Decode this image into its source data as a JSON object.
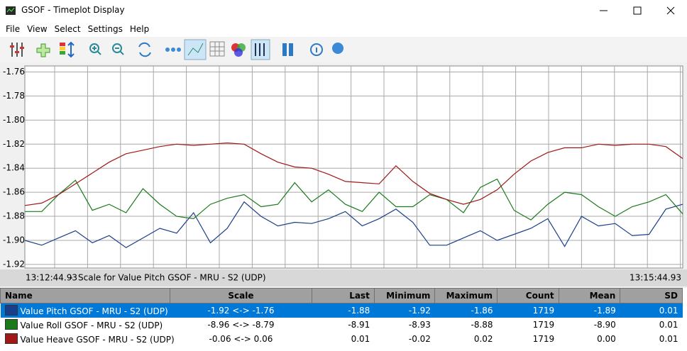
{
  "window": {
    "title": "GSOF - Timeplot Display"
  },
  "menu": [
    "File",
    "View",
    "Select",
    "Settings",
    "Help"
  ],
  "chart_data": {
    "type": "line",
    "subtitle": "Scale for Value Pitch GSOF - MRU - S2 (UDP)",
    "categories": [
      "13:12:44.93",
      null,
      null,
      null,
      null,
      null,
      null,
      null,
      null,
      null,
      null,
      null,
      null,
      null,
      null,
      null,
      null,
      null,
      null,
      null,
      null,
      null,
      null,
      null,
      null,
      null,
      null,
      null,
      null,
      null,
      null,
      null,
      null,
      null,
      null,
      null,
      null,
      null,
      null,
      "13:15:44.93"
    ],
    "ylim": [
      -1.923,
      -1.755
    ],
    "yticks": [
      -1.76,
      -1.78,
      {
        "value": -1.8,
        "label": "-1.80"
      },
      -1.82,
      -1.84,
      -1.86,
      -1.88,
      {
        "value": -1.9,
        "label": "-1.90"
      },
      -1.92
    ],
    "grid": true,
    "series": [
      {
        "name": "Value Pitch GSOF - MRU - S2 (UDP)",
        "color": "#1a3f8a",
        "values": [
          -1.9,
          -1.904,
          -1.898,
          -1.892,
          -1.902,
          -1.896,
          -1.906,
          -1.898,
          -1.89,
          -1.894,
          -1.877,
          -1.902,
          -1.89,
          -1.868,
          -1.88,
          -1.888,
          -1.885,
          -1.886,
          -1.882,
          -1.876,
          -1.888,
          -1.882,
          -1.874,
          -1.885,
          -1.904,
          -1.904,
          -1.898,
          -1.892,
          -1.9,
          -1.895,
          -1.89,
          -1.882,
          -1.905,
          -1.88,
          -1.888,
          -1.886,
          -1.896,
          -1.895,
          -1.874,
          -1.87
        ]
      },
      {
        "name": "Value Roll GSOF - MRU - S2 (UDP)",
        "color": "#1a7a1a",
        "values": [
          -1.876,
          -1.876,
          -1.862,
          -1.85,
          -1.875,
          -1.87,
          -1.877,
          -1.857,
          -1.87,
          -1.88,
          -1.882,
          -1.87,
          -1.865,
          -1.862,
          -1.872,
          -1.87,
          -1.852,
          -1.868,
          -1.858,
          -1.87,
          -1.876,
          -1.86,
          -1.872,
          -1.872,
          -1.862,
          -1.866,
          -1.877,
          -1.856,
          -1.849,
          -1.875,
          -1.883,
          -1.87,
          -1.86,
          -1.862,
          -1.872,
          -1.88,
          -1.872,
          -1.868,
          -1.862,
          -1.878
        ]
      },
      {
        "name": "Value Heave GSOF - MRU - S2 (UDP)",
        "color": "#a01818",
        "values": [
          -1.871,
          -1.869,
          -1.862,
          -1.853,
          -1.844,
          -1.835,
          -1.828,
          -1.825,
          -1.822,
          -1.82,
          -1.821,
          -1.82,
          -1.819,
          -1.82,
          -1.828,
          -1.835,
          -1.839,
          -1.84,
          -1.845,
          -1.851,
          -1.852,
          -1.853,
          -1.838,
          -1.851,
          -1.861,
          -1.866,
          -1.87,
          -1.866,
          -1.858,
          -1.845,
          -1.834,
          -1.827,
          -1.823,
          -1.823,
          -1.82,
          -1.821,
          -1.82,
          -1.82,
          -1.822,
          -1.832
        ]
      }
    ]
  },
  "table": {
    "header": [
      "Name",
      "Scale",
      "Last",
      "Minimum",
      "Maximum",
      "Count",
      "Mean",
      "SD"
    ],
    "rows": [
      [
        "Value Pitch GSOF - MRU - S2 (UDP)",
        "-1.92 <-> -1.76",
        "-1.88",
        "-1.92",
        "-1.86",
        "1719",
        "-1.89",
        "0.01"
      ],
      [
        "Value Roll GSOF - MRU - S2 (UDP)",
        "-8.96 <-> -8.79",
        "-8.91",
        "-8.93",
        "-8.88",
        "1719",
        "-8.90",
        "0.01"
      ],
      [
        "Value Heave GSOF - MRU - S2 (UDP)",
        "-0.06 <-> 0.06",
        "0.01",
        "-0.02",
        "0.02",
        "1719",
        "0.00",
        "0.01"
      ]
    ]
  }
}
